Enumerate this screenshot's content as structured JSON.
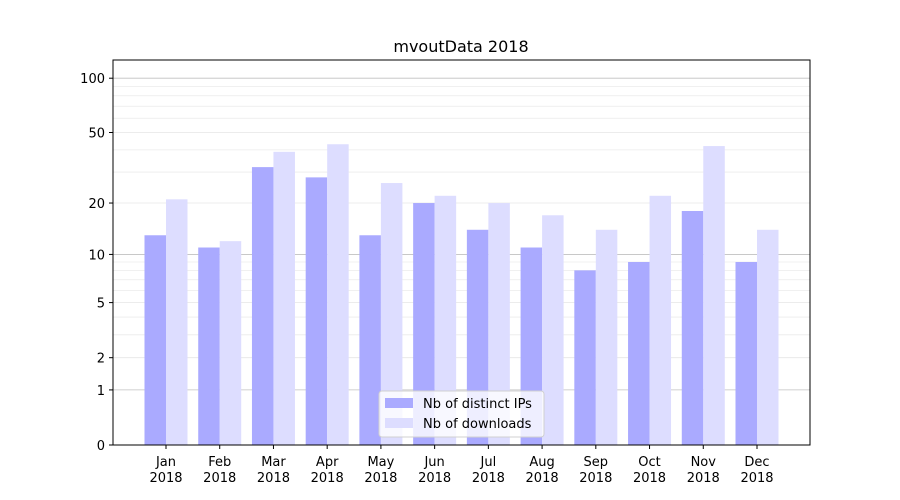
{
  "chart_data": {
    "type": "bar",
    "title": "mvoutData 2018",
    "xlabel": "",
    "ylabel": "",
    "yscale": "log10(y+1)",
    "ylim": [
      0,
      126
    ],
    "yticks": [
      0,
      1,
      2,
      5,
      10,
      20,
      50,
      100
    ],
    "grid": true,
    "legend_position": "bottom-center",
    "categories": [
      "Jan\n2018",
      "Feb\n2018",
      "Mar\n2018",
      "Apr\n2018",
      "May\n2018",
      "Jun\n2018",
      "Jul\n2018",
      "Aug\n2018",
      "Sep\n2018",
      "Oct\n2018",
      "Nov\n2018",
      "Dec\n2018"
    ],
    "series": [
      {
        "name": "Nb of distinct IPs",
        "color": "#aaaaff",
        "values": [
          13,
          11,
          32,
          28,
          13,
          20,
          14,
          11,
          8,
          9,
          18,
          9
        ]
      },
      {
        "name": "Nb of downloads",
        "color": "#ddddff",
        "values": [
          21,
          12,
          39,
          43,
          26,
          22,
          20,
          17,
          14,
          22,
          42,
          14
        ]
      }
    ]
  }
}
